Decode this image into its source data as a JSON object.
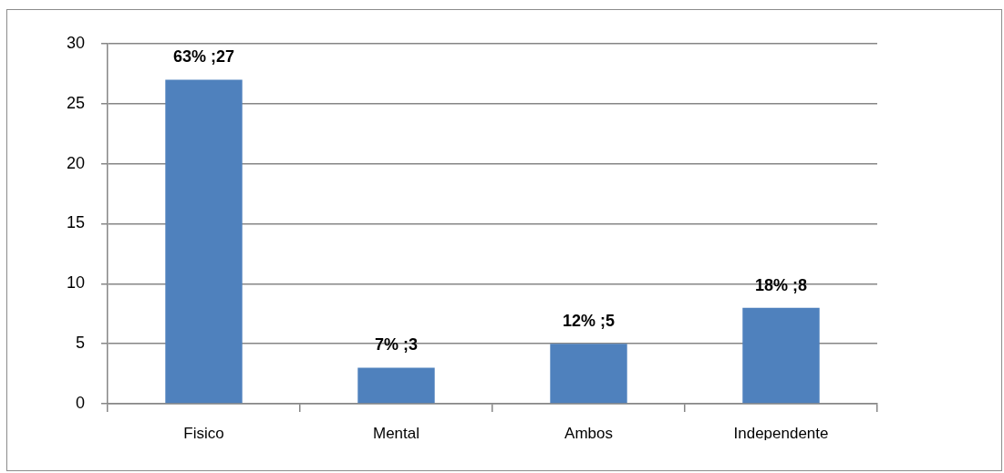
{
  "chart_data": {
    "type": "bar",
    "categories": [
      "Fisico",
      "Mental",
      "Ambos",
      "Independente"
    ],
    "values": [
      27,
      3,
      5,
      8
    ],
    "value_labels": [
      "63% ;27",
      "7% ;3",
      "12% ;5",
      "18% ;8"
    ],
    "color": "#4f81bd",
    "ylim": [
      0,
      30
    ],
    "yticks": [
      0,
      5,
      10,
      15,
      20,
      25,
      30
    ],
    "grid": "y"
  }
}
